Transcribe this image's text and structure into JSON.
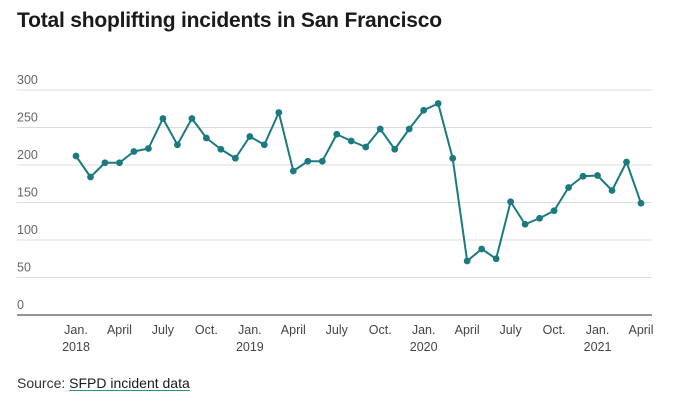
{
  "title": "Total shoplifting incidents in San Francisco",
  "source": {
    "prefix": "Source: ",
    "link_text": "SFPD incident data"
  },
  "colors": {
    "line": "#1b7a80",
    "grid": "#dddddd",
    "axis": "#555555"
  },
  "chart_data": {
    "type": "line",
    "title": "Total shoplifting incidents in San Francisco",
    "xlabel": "",
    "ylabel": "",
    "ylim": [
      0,
      300
    ],
    "yticks": [
      0,
      50,
      100,
      150,
      200,
      250,
      300
    ],
    "grid": true,
    "x_tick_labels": [
      {
        "month": "2018-01",
        "label": "Jan.",
        "year": "2018"
      },
      {
        "month": "2018-04",
        "label": "April"
      },
      {
        "month": "2018-07",
        "label": "July"
      },
      {
        "month": "2018-10",
        "label": "Oct."
      },
      {
        "month": "2019-01",
        "label": "Jan.",
        "year": "2019"
      },
      {
        "month": "2019-04",
        "label": "April"
      },
      {
        "month": "2019-07",
        "label": "July"
      },
      {
        "month": "2019-10",
        "label": "Oct."
      },
      {
        "month": "2020-01",
        "label": "Jan.",
        "year": "2020"
      },
      {
        "month": "2020-04",
        "label": "April"
      },
      {
        "month": "2020-07",
        "label": "July"
      },
      {
        "month": "2020-10",
        "label": "Oct."
      },
      {
        "month": "2021-01",
        "label": "Jan.",
        "year": "2021"
      },
      {
        "month": "2021-04",
        "label": "April"
      }
    ],
    "x": [
      "2018-01",
      "2018-02",
      "2018-03",
      "2018-04",
      "2018-05",
      "2018-06",
      "2018-07",
      "2018-08",
      "2018-09",
      "2018-10",
      "2018-11",
      "2018-12",
      "2019-01",
      "2019-02",
      "2019-03",
      "2019-04",
      "2019-05",
      "2019-06",
      "2019-07",
      "2019-08",
      "2019-09",
      "2019-10",
      "2019-11",
      "2019-12",
      "2020-01",
      "2020-02",
      "2020-03",
      "2020-04",
      "2020-05",
      "2020-06",
      "2020-07",
      "2020-08",
      "2020-09",
      "2020-10",
      "2020-11",
      "2020-12",
      "2021-01",
      "2021-02",
      "2021-03",
      "2021-04"
    ],
    "series": [
      {
        "values": [
          212,
          184,
          203,
          203,
          218,
          222,
          262,
          227,
          262,
          236,
          221,
          209,
          238,
          227,
          270,
          192,
          205,
          205,
          241,
          232,
          224,
          248,
          221,
          248,
          273,
          282,
          209,
          72,
          88,
          75,
          151,
          121,
          129,
          139,
          170,
          185,
          186,
          166,
          204,
          149
        ]
      }
    ]
  }
}
